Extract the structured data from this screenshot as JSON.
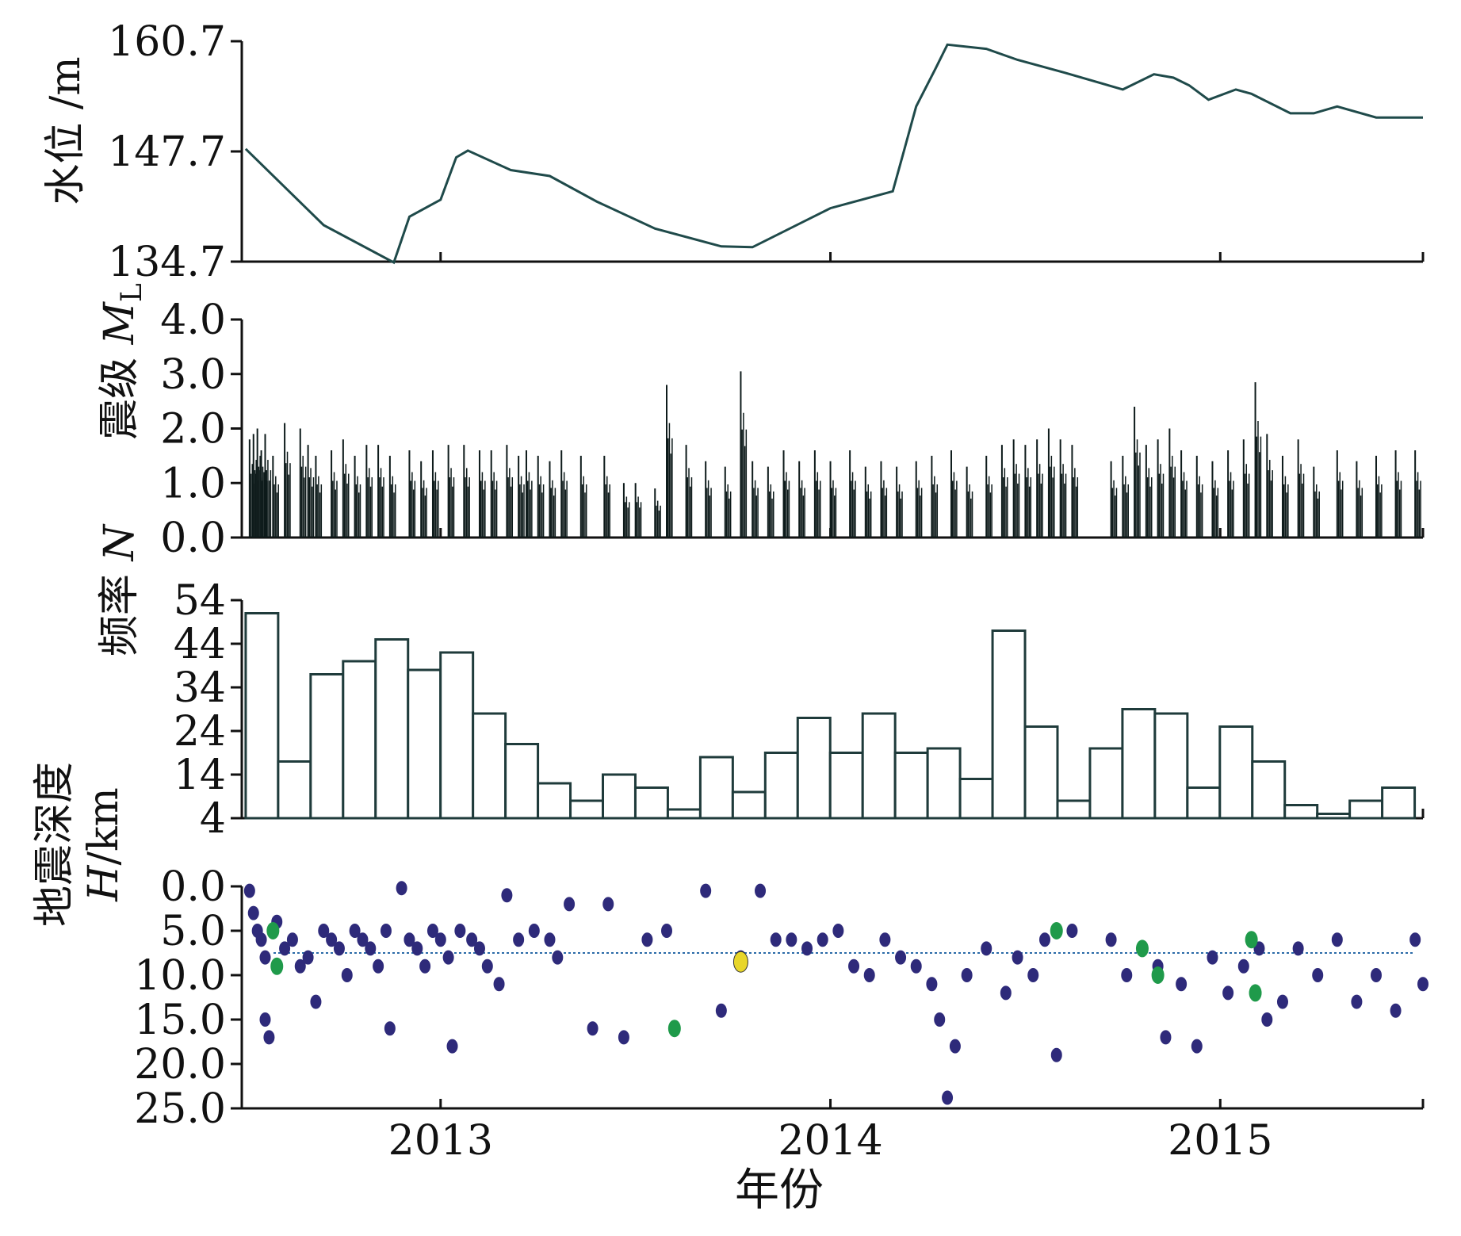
{
  "figure": {
    "xlabel": "年份",
    "year_ticks": [
      2013,
      2014,
      2015
    ],
    "x_range": [
      2012.49,
      2015.52
    ]
  },
  "chart_data": [
    {
      "id": "water-level",
      "type": "line",
      "ylabel": "水位 /m",
      "ylim": [
        134.7,
        160.7
      ],
      "yticks": [
        134.7,
        147.7,
        160.7
      ],
      "line_color": "#1f4a4a",
      "series": [
        {
          "x": [
            2012.5,
            2012.7,
            2012.88,
            2012.92,
            2013.0,
            2013.04,
            2013.07,
            2013.18,
            2013.28,
            2013.4,
            2013.55,
            2013.72,
            2013.8,
            2014.0,
            2014.16,
            2014.19,
            2014.22,
            2014.27,
            2014.3,
            2014.4,
            2014.48,
            2014.6,
            2014.75,
            2014.83,
            2014.88,
            2014.92,
            2014.97,
            2015.04,
            2015.08,
            2015.18,
            2015.24,
            2015.3,
            2015.4,
            2015.52
          ],
          "y": [
            148.0,
            139.0,
            134.6,
            140.0,
            142.0,
            147.0,
            147.8,
            145.5,
            144.8,
            141.8,
            138.6,
            136.5,
            136.4,
            141.0,
            143.0,
            148.0,
            153.0,
            157.5,
            160.3,
            159.8,
            158.5,
            157.0,
            155.0,
            156.8,
            156.4,
            155.5,
            153.8,
            155.0,
            154.5,
            152.2,
            152.2,
            153.0,
            151.7,
            151.7
          ]
        }
      ]
    },
    {
      "id": "magnitude",
      "type": "bar",
      "ylabel_prefix": "震级 ",
      "ylabel_symbol": "M",
      "ylabel_sub": "L",
      "ylim": [
        0,
        4.0
      ],
      "yticks": [
        0.0,
        1.0,
        2.0,
        3.0,
        4.0
      ],
      "ytick_labels": [
        "0.0",
        "1.0",
        "2.0",
        "3.0",
        "4.0"
      ],
      "bar_color": "#0d1a1a",
      "events": [
        [
          2012.51,
          1.8
        ],
        [
          2012.52,
          1.9
        ],
        [
          2012.53,
          2.0
        ],
        [
          2012.54,
          1.6
        ],
        [
          2012.55,
          1.9
        ],
        [
          2012.57,
          1.5
        ],
        [
          2012.6,
          2.1
        ],
        [
          2012.64,
          2.0
        ],
        [
          2012.66,
          1.7
        ],
        [
          2012.68,
          1.5
        ],
        [
          2012.72,
          1.6
        ],
        [
          2012.75,
          1.8
        ],
        [
          2012.78,
          1.5
        ],
        [
          2012.81,
          1.7
        ],
        [
          2012.84,
          1.7
        ],
        [
          2012.87,
          1.5
        ],
        [
          2012.92,
          1.6
        ],
        [
          2012.95,
          1.4
        ],
        [
          2012.98,
          1.6
        ],
        [
          2013.02,
          1.7
        ],
        [
          2013.06,
          1.7
        ],
        [
          2013.1,
          1.6
        ],
        [
          2013.13,
          1.6
        ],
        [
          2013.17,
          1.7
        ],
        [
          2013.2,
          1.5
        ],
        [
          2013.22,
          1.6
        ],
        [
          2013.25,
          1.5
        ],
        [
          2013.28,
          1.4
        ],
        [
          2013.31,
          1.6
        ],
        [
          2013.36,
          1.5
        ],
        [
          2013.42,
          1.5
        ],
        [
          2013.47,
          1.0
        ],
        [
          2013.5,
          1.0
        ],
        [
          2013.55,
          0.9
        ],
        [
          2013.58,
          2.8
        ],
        [
          2013.63,
          1.7
        ],
        [
          2013.68,
          1.4
        ],
        [
          2013.73,
          1.3
        ],
        [
          2013.77,
          3.05
        ],
        [
          2013.8,
          1.4
        ],
        [
          2013.84,
          1.3
        ],
        [
          2013.88,
          1.6
        ],
        [
          2013.92,
          1.4
        ],
        [
          2013.96,
          1.6
        ],
        [
          2014.0,
          1.4
        ],
        [
          2014.05,
          1.6
        ],
        [
          2014.09,
          1.3
        ],
        [
          2014.13,
          1.4
        ],
        [
          2014.17,
          1.3
        ],
        [
          2014.22,
          1.4
        ],
        [
          2014.26,
          1.5
        ],
        [
          2014.31,
          1.6
        ],
        [
          2014.35,
          1.3
        ],
        [
          2014.4,
          1.5
        ],
        [
          2014.44,
          1.7
        ],
        [
          2014.47,
          1.8
        ],
        [
          2014.5,
          1.7
        ],
        [
          2014.53,
          1.8
        ],
        [
          2014.56,
          2.0
        ],
        [
          2014.59,
          1.8
        ],
        [
          2014.62,
          1.7
        ],
        [
          2014.72,
          1.4
        ],
        [
          2014.75,
          1.5
        ],
        [
          2014.78,
          2.4
        ],
        [
          2014.81,
          1.7
        ],
        [
          2014.84,
          1.8
        ],
        [
          2014.87,
          2.0
        ],
        [
          2014.9,
          1.6
        ],
        [
          2014.94,
          1.5
        ],
        [
          2014.98,
          1.4
        ],
        [
          2015.02,
          1.6
        ],
        [
          2015.06,
          1.8
        ],
        [
          2015.09,
          2.85
        ],
        [
          2015.12,
          1.9
        ],
        [
          2015.16,
          1.5
        ],
        [
          2015.2,
          1.8
        ],
        [
          2015.24,
          1.3
        ],
        [
          2015.3,
          1.6
        ],
        [
          2015.35,
          1.4
        ],
        [
          2015.4,
          1.5
        ],
        [
          2015.45,
          1.6
        ],
        [
          2015.5,
          1.6
        ]
      ]
    },
    {
      "id": "frequency",
      "type": "bar",
      "ylabel_prefix": "频率 ",
      "ylabel_symbol": "N",
      "ylim": [
        4,
        54
      ],
      "yticks": [
        4,
        14,
        24,
        34,
        44,
        54
      ],
      "x_start": 2012.5,
      "bin_width": 0.0833,
      "bar_color": "#ffffff",
      "edge_color": "#1f3b3b",
      "values": [
        51,
        17,
        37,
        40,
        45,
        38,
        42,
        28,
        21,
        12,
        8,
        14,
        11,
        6,
        18,
        10,
        19,
        27,
        19,
        28,
        19,
        20,
        13,
        47,
        25,
        8,
        20,
        29,
        28,
        11,
        25,
        17,
        7,
        5,
        8,
        11
      ]
    },
    {
      "id": "depth",
      "type": "scatter",
      "ylabel_line1": "地震深度",
      "ylabel_symbol": "H",
      "ylabel_unit": "/km",
      "ylim": [
        0,
        25
      ],
      "yticks": [
        0,
        5,
        10,
        15,
        20,
        25
      ],
      "ytick_labels": [
        "0.0",
        "5.0",
        "10.0",
        "15.0",
        "20.0",
        "25.0"
      ],
      "y_inverted": true,
      "reference_depth": 7.5,
      "colors": {
        "default": "#2e2a7a",
        "green": "#1f9a4a",
        "yellow": "#e8d62a",
        "ref": "#2a6aa8"
      },
      "points": [
        [
          2012.51,
          0.5
        ],
        [
          2012.52,
          3
        ],
        [
          2012.53,
          5
        ],
        [
          2012.54,
          6
        ],
        [
          2012.55,
          8
        ],
        [
          2012.55,
          15
        ],
        [
          2012.56,
          17
        ],
        [
          2012.58,
          4
        ],
        [
          2012.6,
          7
        ],
        [
          2012.62,
          6
        ],
        [
          2012.64,
          9
        ],
        [
          2012.66,
          8
        ],
        [
          2012.68,
          13
        ],
        [
          2012.7,
          5
        ],
        [
          2012.72,
          6
        ],
        [
          2012.74,
          7
        ],
        [
          2012.76,
          10
        ],
        [
          2012.78,
          5
        ],
        [
          2012.8,
          6
        ],
        [
          2012.82,
          7
        ],
        [
          2012.84,
          9
        ],
        [
          2012.86,
          5
        ],
        [
          2012.87,
          16
        ],
        [
          2012.9,
          0.2
        ],
        [
          2012.92,
          6
        ],
        [
          2012.94,
          7
        ],
        [
          2012.96,
          9
        ],
        [
          2012.98,
          5
        ],
        [
          2013.0,
          6
        ],
        [
          2013.02,
          8
        ],
        [
          2013.03,
          18
        ],
        [
          2013.05,
          5
        ],
        [
          2013.08,
          6
        ],
        [
          2013.1,
          7
        ],
        [
          2013.12,
          9
        ],
        [
          2013.15,
          11
        ],
        [
          2013.17,
          1
        ],
        [
          2013.2,
          6
        ],
        [
          2013.24,
          5
        ],
        [
          2013.28,
          6
        ],
        [
          2013.3,
          8
        ],
        [
          2013.33,
          2
        ],
        [
          2013.39,
          16
        ],
        [
          2013.43,
          2
        ],
        [
          2013.47,
          17
        ],
        [
          2013.53,
          6
        ],
        [
          2013.58,
          5
        ],
        [
          2013.68,
          0.5
        ],
        [
          2013.72,
          14
        ],
        [
          2013.77,
          8
        ],
        [
          2013.82,
          0.5
        ],
        [
          2013.86,
          6
        ],
        [
          2013.9,
          6
        ],
        [
          2013.94,
          7
        ],
        [
          2013.98,
          6
        ],
        [
          2014.02,
          5
        ],
        [
          2014.06,
          9
        ],
        [
          2014.1,
          10
        ],
        [
          2014.14,
          6
        ],
        [
          2014.18,
          8
        ],
        [
          2014.22,
          9
        ],
        [
          2014.26,
          11
        ],
        [
          2014.28,
          15
        ],
        [
          2014.3,
          23.8
        ],
        [
          2014.32,
          18
        ],
        [
          2014.35,
          10
        ],
        [
          2014.4,
          7
        ],
        [
          2014.45,
          12
        ],
        [
          2014.48,
          8
        ],
        [
          2014.52,
          10
        ],
        [
          2014.55,
          6
        ],
        [
          2014.58,
          19
        ],
        [
          2014.62,
          5
        ],
        [
          2014.72,
          6
        ],
        [
          2014.76,
          10
        ],
        [
          2014.8,
          7
        ],
        [
          2014.84,
          9
        ],
        [
          2014.86,
          17
        ],
        [
          2014.9,
          11
        ],
        [
          2014.94,
          18
        ],
        [
          2014.98,
          8
        ],
        [
          2015.02,
          12
        ],
        [
          2015.06,
          9
        ],
        [
          2015.1,
          7
        ],
        [
          2015.12,
          15
        ],
        [
          2015.16,
          13
        ],
        [
          2015.2,
          7
        ],
        [
          2015.25,
          10
        ],
        [
          2015.3,
          6
        ],
        [
          2015.35,
          13
        ],
        [
          2015.4,
          10
        ],
        [
          2015.45,
          14
        ],
        [
          2015.5,
          6
        ],
        [
          2015.52,
          11
        ]
      ],
      "green_points": [
        [
          2012.57,
          5
        ],
        [
          2012.58,
          9
        ],
        [
          2013.6,
          16
        ],
        [
          2014.58,
          5
        ],
        [
          2014.8,
          7
        ],
        [
          2014.84,
          10
        ],
        [
          2015.08,
          6
        ],
        [
          2015.09,
          12
        ]
      ],
      "yellow_points": [
        [
          2013.77,
          8.5
        ]
      ]
    }
  ]
}
